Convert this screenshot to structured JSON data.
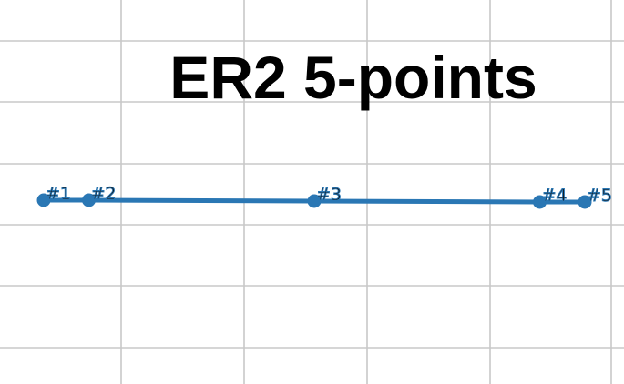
{
  "chart_data": {
    "type": "line",
    "title": "ER2 5-points",
    "grid": true,
    "x": [
      0.0,
      0.6,
      3.6,
      6.6,
      7.2
    ],
    "y": [
      0.0,
      0.0,
      -0.02,
      -0.04,
      -0.04
    ],
    "labels": [
      "#1",
      "#2",
      "#3",
      "#4",
      "#5"
    ],
    "series_color": "#2a77b4",
    "grid_color": "#c8c8c8"
  }
}
